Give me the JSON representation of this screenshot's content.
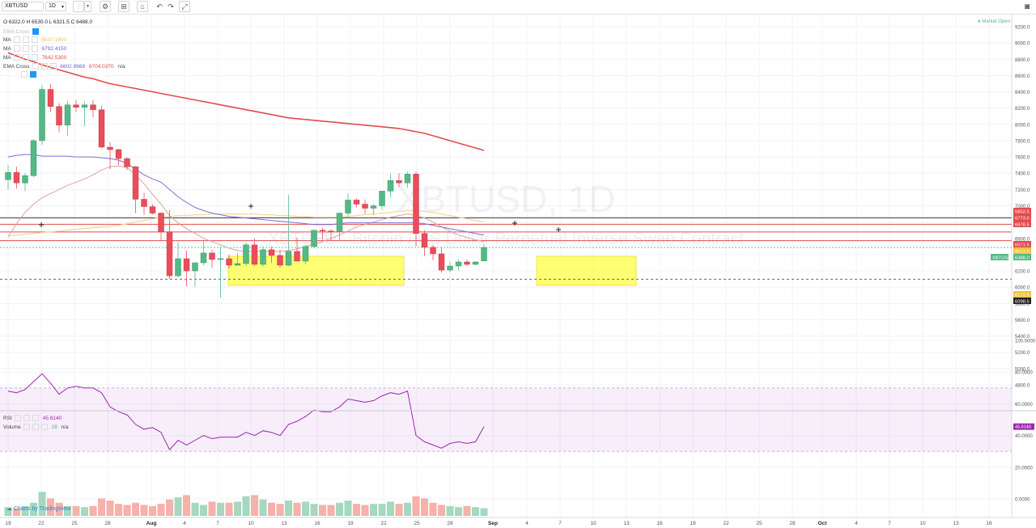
{
  "toolbar": {
    "symbol": "XBTUSD",
    "interval": "1D",
    "market_status": "Market Open"
  },
  "legend": {
    "ohlc": "O 6322.0  H 6530.0  L 6321.5  C 6488.0",
    "ema_cross_1": "EMA Cross",
    "ma1_label": "MA",
    "ma1_value": "6837.1800",
    "ma2_label": "MA",
    "ma2_value": "6792.4150",
    "ma3_label": "MA",
    "ma3_value": "7642.5300",
    "ema_cross_2": "EMA Cross",
    "ema2_v1": "6602.9668",
    "ema2_v2": "6704.0370",
    "ema2_na": "n/a",
    "rsi_label": "RSI",
    "rsi_value": "45.6140",
    "volume_label": "Volume",
    "volume_value": "28",
    "volume_na": "n/a"
  },
  "watermark": {
    "big": "XBTUSD, 1D",
    "sub": "XBTUSD · Bitcoin / US Dollar Perpetual Inverse Swap Contract"
  },
  "branding": "Charts by TradingView",
  "colors": {
    "up": "#53b987",
    "down": "#eb4d5c",
    "ma_red": "#e14b4b",
    "ema_purple": "#7a6fd8",
    "ema_pink": "#e0a0a0",
    "ma_yellow": "#f3da9b",
    "rsi": "#9c27b0",
    "highlight": "#ffff00"
  },
  "chart_data": {
    "type": "candlestick",
    "symbol": "XBTUSD",
    "interval": "1D",
    "price_axis": [
      "9200.0",
      "9000.0",
      "8800.0",
      "8600.0",
      "8400.0",
      "8200.0",
      "8000.0",
      "7800.0",
      "7600.0",
      "7400.0",
      "7200.0",
      "7000.0",
      "6800.0",
      "6600.0",
      "6400.0",
      "6200.0",
      "6000.0",
      "5800.0",
      "5600.0",
      "5400.0",
      "5200.0",
      "5000.0",
      "4800.0"
    ],
    "price_ticks": [
      9200,
      9000,
      8800,
      8600,
      8400,
      8200,
      8000,
      7800,
      7600,
      7400,
      7200,
      7000,
      6800,
      6600,
      6400,
      6200,
      6000,
      5800,
      5600,
      5400,
      5200,
      5000,
      4800
    ],
    "date_axis": [
      "19",
      "22",
      "25",
      "28",
      "Aug",
      "4",
      "7",
      "10",
      "13",
      "16",
      "19",
      "22",
      "25",
      "28",
      "Sep",
      "4",
      "7",
      "10",
      "13",
      "16",
      "19",
      "22",
      "25",
      "28",
      "Oct",
      "4",
      "7",
      "10",
      "13",
      "16"
    ],
    "price_labels": [
      {
        "text": "6852.5",
        "color": "#e14b4b"
      },
      {
        "text": "6773.0",
        "color": "#e14b4b"
      },
      {
        "text": "6678.5",
        "color": "#e14b4b"
      },
      {
        "text": "6571.5",
        "color": "#e14b4b"
      },
      {
        "text": "6513.5",
        "color": "#f3c240"
      },
      {
        "text": "XBTUSD",
        "color": "#53b987"
      },
      {
        "text": "6488.0",
        "color": "#53b987"
      },
      {
        "text": "6172.5",
        "color": "#f3c240"
      },
      {
        "text": "6098.5",
        "color": "#222222"
      }
    ],
    "rsi_axis": [
      "100.0000",
      "80.0000",
      "60.0000",
      "40.0000",
      "20.0000",
      "0.0000"
    ],
    "rsi_ticks": [
      100,
      80,
      60,
      40,
      20,
      0
    ],
    "rsi_band": [
      30,
      70
    ],
    "candles": [
      [
        7320,
        7500,
        7200,
        7410
      ],
      [
        7410,
        7480,
        7210,
        7280
      ],
      [
        7280,
        7400,
        7180,
        7370
      ],
      [
        7370,
        7820,
        7350,
        7800
      ],
      [
        7800,
        8480,
        7750,
        8430
      ],
      [
        8430,
        8500,
        8150,
        8220
      ],
      [
        8220,
        8260,
        7900,
        7990
      ],
      [
        7990,
        8290,
        7860,
        8240
      ],
      [
        8240,
        8300,
        8150,
        8210
      ],
      [
        8210,
        8280,
        7980,
        8240
      ],
      [
        8240,
        8300,
        8090,
        8180
      ],
      [
        8180,
        8230,
        7710,
        7720
      ],
      [
        7720,
        7780,
        7450,
        7690
      ],
      [
        7690,
        7700,
        7500,
        7580
      ],
      [
        7580,
        7600,
        7440,
        7480
      ],
      [
        7480,
        7490,
        6910,
        7080
      ],
      [
        7080,
        7160,
        6890,
        6990
      ],
      [
        6990,
        7020,
        6890,
        6910
      ],
      [
        6910,
        6920,
        6570,
        6680
      ],
      [
        6680,
        6950,
        6100,
        6140
      ],
      [
        6140,
        6560,
        6120,
        6350
      ],
      [
        6350,
        6450,
        6010,
        6200
      ],
      [
        6200,
        6300,
        6000,
        6300
      ],
      [
        6300,
        6580,
        6270,
        6420
      ],
      [
        6420,
        6460,
        6240,
        6340
      ],
      [
        6340,
        6500,
        5870,
        6350
      ],
      [
        6350,
        6400,
        6230,
        6270
      ],
      [
        6270,
        6420,
        6260,
        6290
      ],
      [
        6290,
        6550,
        6260,
        6520
      ],
      [
        6520,
        6600,
        6260,
        6280
      ],
      [
        6280,
        6500,
        6250,
        6460
      ],
      [
        6460,
        6500,
        6300,
        6390
      ],
      [
        6390,
        6460,
        6240,
        6270
      ],
      [
        6270,
        7130,
        6260,
        6440
      ],
      [
        6440,
        6610,
        6330,
        6320
      ],
      [
        6320,
        6520,
        6280,
        6500
      ],
      [
        6500,
        6680,
        6480,
        6700
      ],
      [
        6700,
        6730,
        6590,
        6690
      ],
      [
        6690,
        6710,
        6570,
        6680
      ],
      [
        6680,
        6890,
        6570,
        6910
      ],
      [
        6910,
        7150,
        6860,
        7070
      ],
      [
        7070,
        7090,
        6980,
        7020
      ],
      [
        7020,
        7080,
        6900,
        6970
      ],
      [
        6970,
        7020,
        6890,
        7000
      ],
      [
        7000,
        7180,
        6950,
        7180
      ],
      [
        7180,
        7400,
        7100,
        7310
      ],
      [
        7310,
        7400,
        7230,
        7280
      ],
      [
        7280,
        7420,
        7220,
        7390
      ],
      [
        7390,
        7420,
        6500,
        6660
      ],
      [
        6660,
        6700,
        6380,
        6490
      ],
      [
        6490,
        6520,
        6330,
        6410
      ],
      [
        6410,
        6490,
        6180,
        6210
      ],
      [
        6210,
        6310,
        6180,
        6260
      ],
      [
        6260,
        6340,
        6200,
        6310
      ],
      [
        6310,
        6340,
        6260,
        6280
      ],
      [
        6280,
        6320,
        6270,
        6310
      ],
      [
        6322,
        6530,
        6321.5,
        6488
      ]
    ],
    "ma_red": [
      8880,
      8840,
      8800,
      8770,
      8730,
      8700,
      8670,
      8640,
      8610,
      8580,
      8560,
      8530,
      8500,
      8480,
      8460,
      8440,
      8420,
      8400,
      8380,
      8360,
      8340,
      8320,
      8300,
      8280,
      8260,
      8240,
      8220,
      8200,
      8180,
      8160,
      8140,
      8120,
      8100,
      8080,
      8070,
      8060,
      8050,
      8040,
      8030,
      8020,
      8010,
      8000,
      7990,
      7980,
      7970,
      7960,
      7950,
      7930,
      7910,
      7890,
      7860,
      7830,
      7800,
      7770,
      7740,
      7710,
      7680
    ],
    "ema_purple": [
      7600,
      7620,
      7630,
      7630,
      7610,
      7610,
      7610,
      7610,
      7600,
      7600,
      7600,
      7590,
      7580,
      7560,
      7520,
      7450,
      7380,
      7330,
      7290,
      7200,
      7110,
      7040,
      6980,
      6940,
      6910,
      6890,
      6870,
      6860,
      6850,
      6840,
      6830,
      6820,
      6810,
      6800,
      6790,
      6780,
      6770,
      6770,
      6770,
      6780,
      6790,
      6790,
      6790,
      6790,
      6790,
      6790,
      6790,
      6790,
      6790,
      6780,
      6760,
      6740,
      6720,
      6700,
      6680,
      6660,
      6640
    ],
    "ema_pink": [
      6620,
      6780,
      6920,
      7020,
      7100,
      7150,
      7200,
      7250,
      7290,
      7330,
      7380,
      7440,
      7480,
      7490,
      7470,
      7380,
      7270,
      7140,
      7020,
      6880,
      6790,
      6720,
      6660,
      6600,
      6560,
      6520,
      6480,
      6450,
      6440,
      6440,
      6440,
      6440,
      6440,
      6450,
      6470,
      6500,
      6530,
      6560,
      6600,
      6640,
      6690,
      6740,
      6770,
      6800,
      6830,
      6860,
      6880,
      6900,
      6880,
      6850,
      6800,
      6740,
      6690,
      6640,
      6610,
      6580,
      6560
    ],
    "ma_yellow": [
      6630,
      6640,
      6650,
      6660,
      6670,
      6680,
      6690,
      6700,
      6710,
      6720,
      6730,
      6740,
      6750,
      6760,
      6780,
      6800,
      6820,
      6840,
      6860,
      6870,
      6880,
      6880,
      6890,
      6890,
      6900,
      6900,
      6900,
      6900,
      6900,
      6900,
      6890,
      6890,
      6880,
      6880,
      6870,
      6870,
      6860,
      6860,
      6860,
      6860,
      6870,
      6880,
      6890,
      6900,
      6910,
      6920,
      6930,
      6940,
      6940,
      6930,
      6920,
      6900,
      6880,
      6860,
      6840,
      6820,
      6800
    ],
    "rsi": [
      68,
      67,
      69,
      74,
      79,
      73,
      66,
      70,
      71,
      70,
      70,
      67,
      58,
      55,
      53,
      47,
      44,
      45,
      42,
      31,
      37,
      34,
      37,
      40,
      38,
      39,
      39,
      39,
      42,
      40,
      43,
      42,
      40,
      47,
      49,
      52,
      56,
      55,
      55,
      58,
      63,
      62,
      61,
      62,
      65,
      67,
      66,
      68,
      40,
      36,
      34,
      32,
      35,
      36,
      35,
      36,
      45.6
    ],
    "volume": [
      8,
      7,
      9,
      12,
      22,
      16,
      12,
      9,
      9,
      8,
      9,
      16,
      14,
      11,
      10,
      12,
      10,
      9,
      11,
      15,
      17,
      19,
      12,
      10,
      13,
      12,
      12,
      13,
      18,
      19,
      15,
      12,
      11,
      14,
      12,
      13,
      11,
      10,
      10,
      12,
      14,
      11,
      10,
      11,
      11,
      13,
      11,
      12,
      18,
      16,
      12,
      10,
      9,
      8,
      9,
      8,
      7
    ]
  }
}
